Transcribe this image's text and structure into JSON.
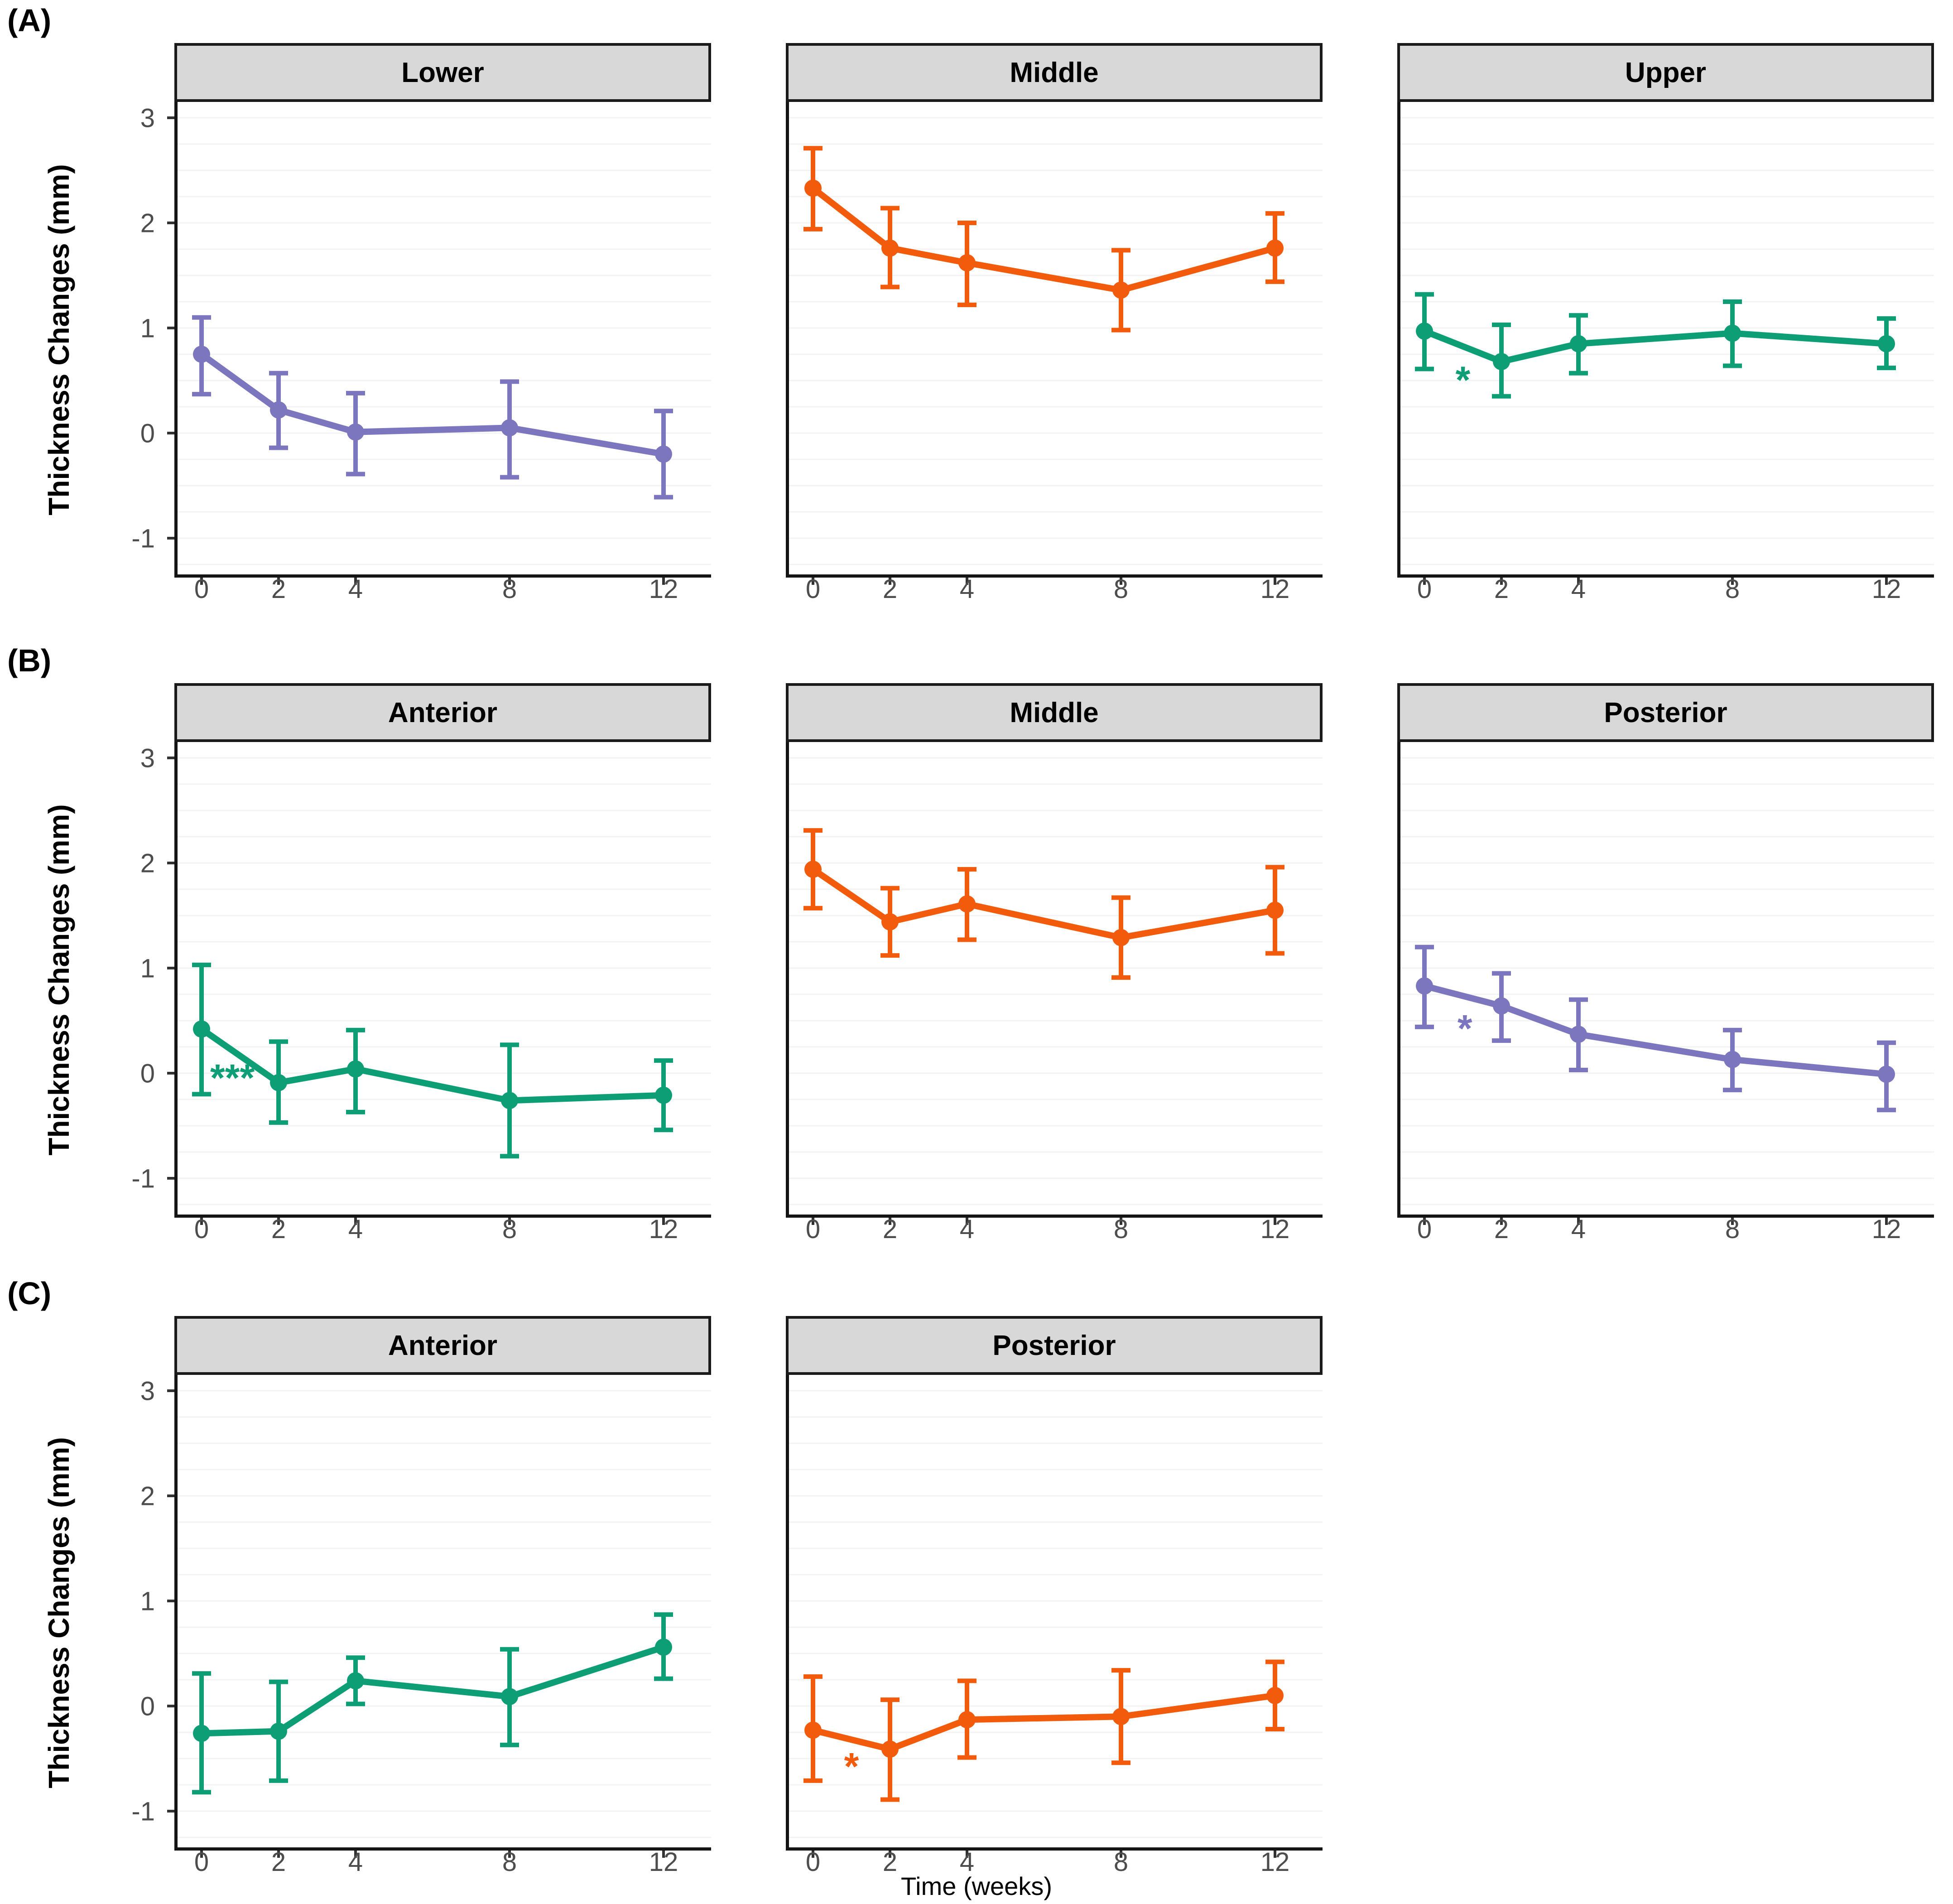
{
  "figure": {
    "background": "#ffffff",
    "strip_fill": "#d8d8d8",
    "strip_border": "#1a1a1a",
    "axis_color": "#141414",
    "tick_mark_color": "#333333",
    "tick_label_color": "#4d4d4d",
    "grid_color": "#f3f3f3",
    "series_colors": {
      "green": "#0d9e76",
      "orange": "#f25a0c",
      "purple": "#7c76bf"
    }
  },
  "chart_data": {
    "type": "line",
    "xlabel": "Time (weeks)",
    "ylabel": "Thickness Changes (mm)",
    "x_ticks": [
      0,
      2,
      4,
      8,
      12
    ],
    "y_ticks": [
      3,
      2,
      1,
      0,
      -1
    ],
    "xlim": [
      -0.7,
      13.2
    ],
    "ylim": [
      -1.4,
      3.15
    ],
    "grid": "faint-horizontal",
    "legend": "none",
    "error_bars": "mean ± error bar at each time point",
    "rows": [
      {
        "tag": "(A)",
        "panels": [
          {
            "label": "Lower",
            "color_name": "purple",
            "color": "#7c76bf",
            "points": [
              {
                "x": 0,
                "y": 0.75,
                "lo": 0.37,
                "hi": 1.1
              },
              {
                "x": 2,
                "y": 0.22,
                "lo": -0.14,
                "hi": 0.57
              },
              {
                "x": 4,
                "y": 0.01,
                "lo": -0.39,
                "hi": 0.38
              },
              {
                "x": 8,
                "y": 0.05,
                "lo": -0.42,
                "hi": 0.49
              },
              {
                "x": 12,
                "y": -0.2,
                "lo": -0.61,
                "hi": 0.21
              }
            ],
            "significance": null
          },
          {
            "label": "Middle",
            "color_name": "orange",
            "color": "#f25a0c",
            "points": [
              {
                "x": 0,
                "y": 2.33,
                "lo": 1.94,
                "hi": 2.71
              },
              {
                "x": 2,
                "y": 1.76,
                "lo": 1.39,
                "hi": 2.14
              },
              {
                "x": 4,
                "y": 1.62,
                "lo": 1.22,
                "hi": 2.0
              },
              {
                "x": 8,
                "y": 1.36,
                "lo": 0.98,
                "hi": 1.74
              },
              {
                "x": 12,
                "y": 1.76,
                "lo": 1.44,
                "hi": 2.09
              }
            ],
            "significance": null
          },
          {
            "label": "Upper",
            "color_name": "green",
            "color": "#0d9e76",
            "points": [
              {
                "x": 0,
                "y": 0.97,
                "lo": 0.61,
                "hi": 1.32
              },
              {
                "x": 2,
                "y": 0.68,
                "lo": 0.35,
                "hi": 1.03
              },
              {
                "x": 4,
                "y": 0.85,
                "lo": 0.57,
                "hi": 1.12
              },
              {
                "x": 8,
                "y": 0.95,
                "lo": 0.64,
                "hi": 1.25
              },
              {
                "x": 12,
                "y": 0.85,
                "lo": 0.62,
                "hi": 1.09
              }
            ],
            "significance": {
              "text": "*",
              "week": 1.0,
              "value": 0.58
            }
          }
        ]
      },
      {
        "tag": "(B)",
        "panels": [
          {
            "label": "Anterior",
            "color_name": "green",
            "color": "#0d9e76",
            "points": [
              {
                "x": 0,
                "y": 0.42,
                "lo": -0.2,
                "hi": 1.03
              },
              {
                "x": 2,
                "y": -0.09,
                "lo": -0.47,
                "hi": 0.3
              },
              {
                "x": 4,
                "y": 0.04,
                "lo": -0.37,
                "hi": 0.41
              },
              {
                "x": 8,
                "y": -0.26,
                "lo": -0.79,
                "hi": 0.27
              },
              {
                "x": 12,
                "y": -0.21,
                "lo": -0.54,
                "hi": 0.12
              }
            ],
            "significance": {
              "text": "***",
              "week": 0.8,
              "value": 0.03
            }
          },
          {
            "label": "Middle",
            "color_name": "orange",
            "color": "#f25a0c",
            "points": [
              {
                "x": 0,
                "y": 1.94,
                "lo": 1.57,
                "hi": 2.31
              },
              {
                "x": 2,
                "y": 1.44,
                "lo": 1.12,
                "hi": 1.76
              },
              {
                "x": 4,
                "y": 1.61,
                "lo": 1.27,
                "hi": 1.94
              },
              {
                "x": 8,
                "y": 1.29,
                "lo": 0.91,
                "hi": 1.67
              },
              {
                "x": 12,
                "y": 1.55,
                "lo": 1.14,
                "hi": 1.96
              }
            ],
            "significance": null
          },
          {
            "label": "Posterior",
            "color_name": "purple",
            "color": "#7c76bf",
            "points": [
              {
                "x": 0,
                "y": 0.83,
                "lo": 0.44,
                "hi": 1.2
              },
              {
                "x": 2,
                "y": 0.64,
                "lo": 0.31,
                "hi": 0.95
              },
              {
                "x": 4,
                "y": 0.37,
                "lo": 0.03,
                "hi": 0.7
              },
              {
                "x": 8,
                "y": 0.13,
                "lo": -0.16,
                "hi": 0.41
              },
              {
                "x": 12,
                "y": -0.01,
                "lo": -0.35,
                "hi": 0.29
              }
            ],
            "significance": {
              "text": "*",
              "week": 1.05,
              "value": 0.5
            }
          }
        ]
      },
      {
        "tag": "(C)",
        "panels": [
          {
            "label": "Anterior",
            "color_name": "green",
            "color": "#0d9e76",
            "points": [
              {
                "x": 0,
                "y": -0.26,
                "lo": -0.82,
                "hi": 0.31
              },
              {
                "x": 2,
                "y": -0.24,
                "lo": -0.71,
                "hi": 0.23
              },
              {
                "x": 4,
                "y": 0.24,
                "lo": 0.02,
                "hi": 0.46
              },
              {
                "x": 8,
                "y": 0.09,
                "lo": -0.37,
                "hi": 0.54
              },
              {
                "x": 12,
                "y": 0.56,
                "lo": 0.26,
                "hi": 0.87
              }
            ],
            "significance": null
          },
          {
            "label": "Posterior",
            "color_name": "orange",
            "color": "#f25a0c",
            "points": [
              {
                "x": 0,
                "y": -0.23,
                "lo": -0.71,
                "hi": 0.28
              },
              {
                "x": 2,
                "y": -0.41,
                "lo": -0.89,
                "hi": 0.06
              },
              {
                "x": 4,
                "y": -0.13,
                "lo": -0.49,
                "hi": 0.24
              },
              {
                "x": 8,
                "y": -0.1,
                "lo": -0.54,
                "hi": 0.34
              },
              {
                "x": 12,
                "y": 0.1,
                "lo": -0.22,
                "hi": 0.42
              }
            ],
            "significance": {
              "text": "*",
              "week": 1.0,
              "value": -0.5
            }
          }
        ]
      }
    ]
  }
}
